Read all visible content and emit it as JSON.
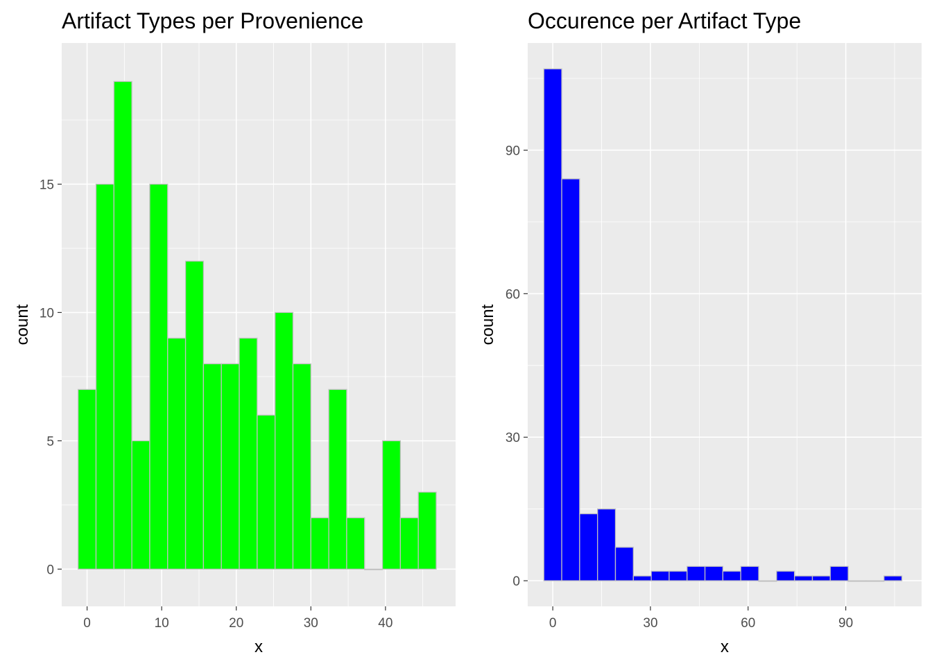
{
  "chart_data": [
    {
      "type": "bar",
      "title": "Artifact Types per Provenience",
      "xlabel": "x",
      "ylabel": "count",
      "xlim": [
        -3.4,
        49.4
      ],
      "ylim": [
        -1.45,
        20.5
      ],
      "x_ticks": [
        0,
        10,
        20,
        30,
        40
      ],
      "y_ticks": [
        0,
        5,
        10,
        15
      ],
      "bin_width": 2.4,
      "bin_centers": [
        0.0,
        2.4,
        4.8,
        7.2,
        9.6,
        12.0,
        14.4,
        16.8,
        19.2,
        21.6,
        24.0,
        26.4,
        28.8,
        31.2,
        33.6,
        36.0,
        38.4,
        40.8,
        43.2,
        45.6
      ],
      "values": [
        7,
        15,
        19,
        5,
        15,
        9,
        12,
        8,
        8,
        9,
        6,
        10,
        8,
        2,
        7,
        2,
        0,
        5,
        2,
        3
      ],
      "fill": "#00ff00",
      "edge": "#c0c0c0",
      "grid": true
    },
    {
      "type": "bar",
      "title": "Occurence per Artifact Type",
      "xlabel": "x",
      "ylabel": "count",
      "xlim": [
        -7.7,
        113.3
      ],
      "ylim": [
        -5.35,
        112.4
      ],
      "x_ticks": [
        0,
        30,
        60,
        90
      ],
      "y_ticks": [
        0,
        30,
        60,
        90
      ],
      "bin_width": 5.5,
      "bin_centers": [
        0.0,
        5.5,
        11.0,
        16.5,
        22.0,
        27.5,
        33.0,
        38.5,
        44.0,
        49.5,
        55.0,
        60.5,
        66.0,
        71.5,
        77.0,
        82.5,
        88.0,
        93.5,
        99.0,
        104.5
      ],
      "values": [
        107,
        84,
        14,
        15,
        7,
        1,
        2,
        2,
        3,
        3,
        2,
        3,
        0,
        2,
        1,
        1,
        3,
        0,
        0,
        1
      ],
      "fill": "#0000ff",
      "edge": "#c0c0c0",
      "grid": true
    }
  ]
}
